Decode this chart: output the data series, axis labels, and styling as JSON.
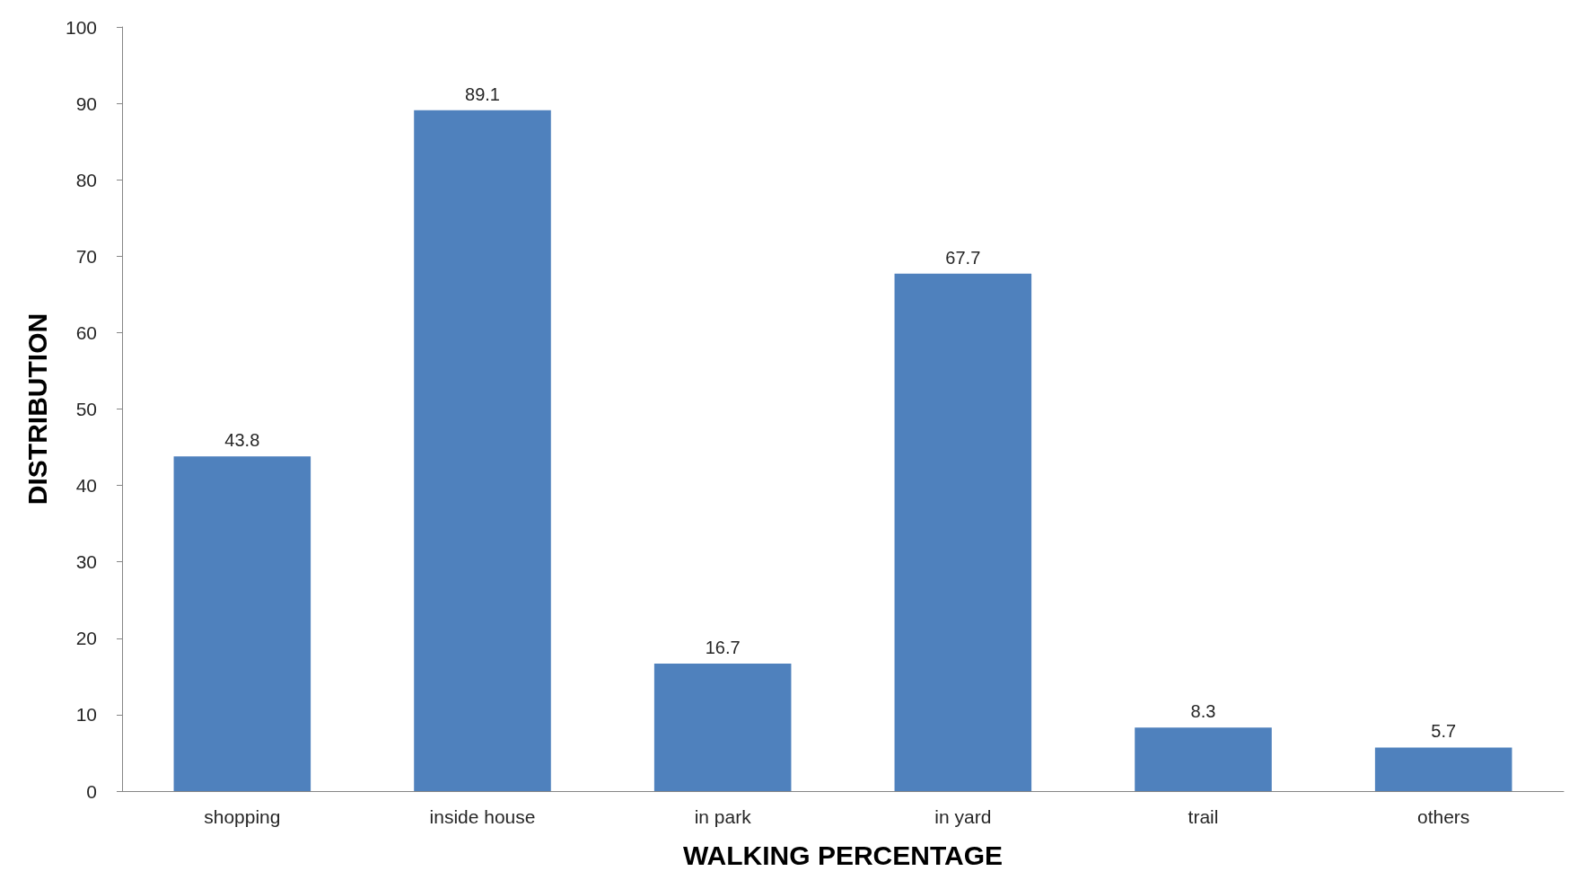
{
  "chart_data": {
    "type": "bar",
    "xlabel": "WALKING PERCENTAGE",
    "ylabel": "DISTRIBUTION",
    "categories": [
      "shopping",
      "inside house",
      "in park",
      "in yard",
      "trail",
      "others"
    ],
    "values": [
      43.8,
      89.1,
      16.7,
      67.7,
      8.3,
      5.7
    ],
    "color": "#4f81bd",
    "ylim": [
      0,
      100
    ],
    "yticks": [
      0,
      10,
      20,
      30,
      40,
      50,
      60,
      70,
      80,
      90,
      100
    ],
    "grid": false,
    "data_labels": true
  }
}
